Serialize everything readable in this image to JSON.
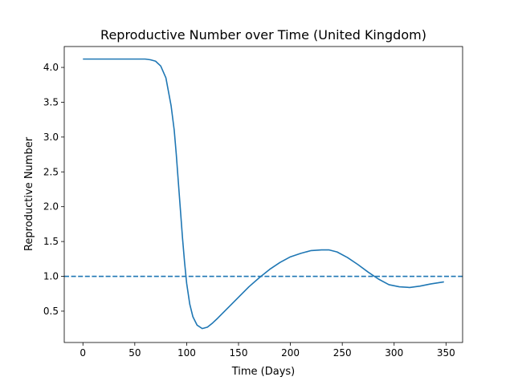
{
  "chart_data": {
    "type": "line",
    "title": "Reproductive Number over Time (United Kingdom)",
    "xlabel": "Time (Days)",
    "ylabel": "Reproductive Number",
    "xlim": [
      -18,
      366
    ],
    "ylim": [
      0.05,
      4.3
    ],
    "xticks": [
      0,
      50,
      100,
      150,
      200,
      250,
      300,
      350
    ],
    "yticks": [
      0.5,
      1.0,
      1.5,
      2.0,
      2.5,
      3.0,
      3.5,
      4.0
    ],
    "grid": false,
    "series": [
      {
        "color": "#1f77b4",
        "style": "solid",
        "x": [
          0,
          20,
          40,
          60,
          65,
          70,
          75,
          80,
          85,
          88,
          90,
          92,
          94,
          96,
          98,
          100,
          103,
          106,
          110,
          115,
          120,
          125,
          130,
          140,
          150,
          160,
          170,
          180,
          190,
          200,
          210,
          220,
          230,
          237,
          245,
          255,
          265,
          275,
          285,
          295,
          305,
          315,
          325,
          335,
          348
        ],
        "y": [
          4.12,
          4.12,
          4.12,
          4.12,
          4.11,
          4.09,
          4.02,
          3.85,
          3.45,
          3.1,
          2.75,
          2.35,
          1.95,
          1.55,
          1.2,
          0.9,
          0.6,
          0.42,
          0.3,
          0.25,
          0.27,
          0.33,
          0.4,
          0.55,
          0.7,
          0.85,
          0.98,
          1.1,
          1.2,
          1.28,
          1.33,
          1.37,
          1.38,
          1.38,
          1.35,
          1.27,
          1.17,
          1.06,
          0.96,
          0.88,
          0.85,
          0.84,
          0.86,
          0.89,
          0.92
        ]
      },
      {
        "color": "#1f77b4",
        "style": "dashed",
        "x": [
          -18,
          366
        ],
        "y": [
          1.0,
          1.0
        ]
      }
    ]
  }
}
